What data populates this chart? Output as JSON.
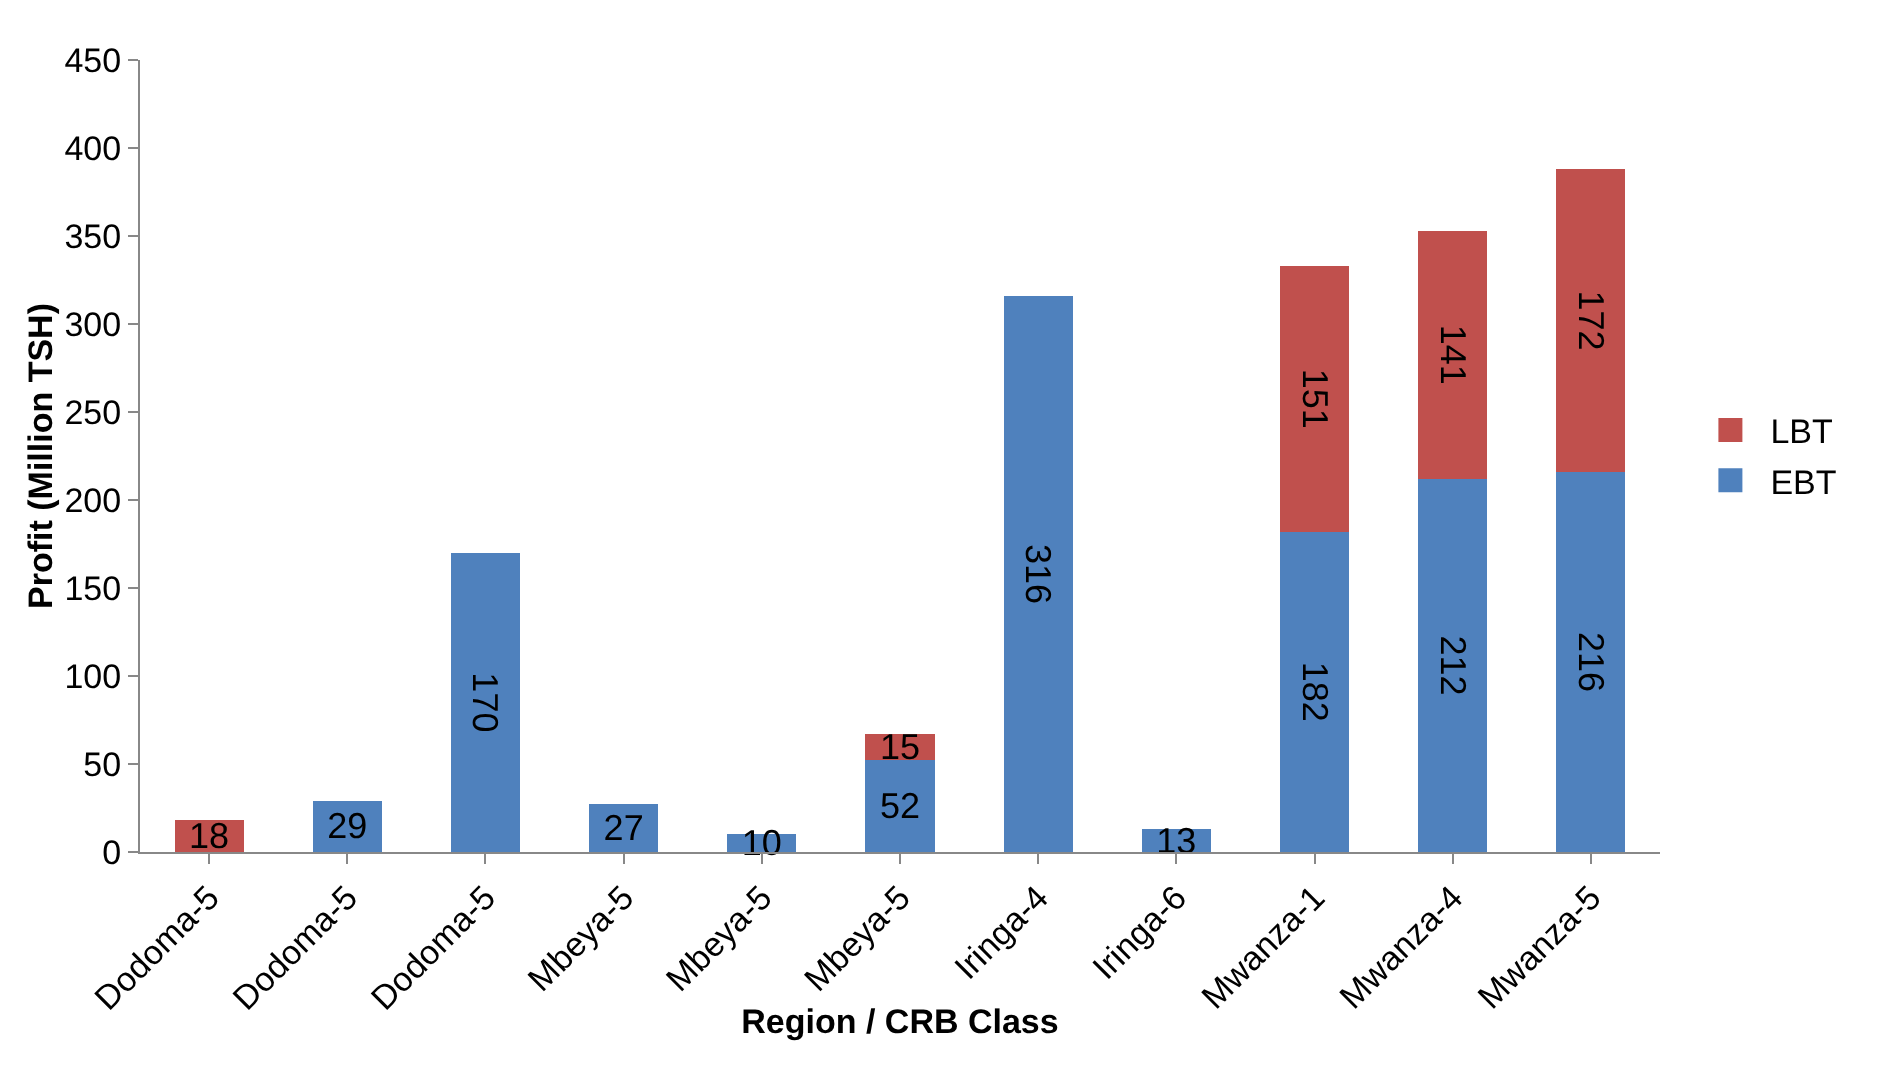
{
  "chart_data": {
    "type": "bar",
    "stacked": true,
    "xlabel": "Region / CRB Class",
    "ylabel": "Profit (Million TSH)",
    "categories": [
      "Dodoma-5",
      "Dodoma-5",
      "Dodoma-5",
      "Mbeya-5",
      "Mbeya-5",
      "Mbeya-5",
      "Iringa-4",
      "Iringa-6",
      "Mwanza-1",
      "Mwanza-4",
      "Mwanza-5"
    ],
    "series": [
      {
        "name": "EBT",
        "color": "#4f81bd",
        "values": [
          null,
          29,
          170,
          27,
          10,
          52,
          316,
          13,
          182,
          212,
          216
        ]
      },
      {
        "name": "LBT",
        "color": "#c0504d",
        "values": [
          18,
          null,
          null,
          null,
          null,
          15,
          null,
          null,
          151,
          141,
          172
        ]
      }
    ],
    "ylim": [
      0,
      450
    ],
    "yticks": [
      0,
      50,
      100,
      150,
      200,
      250,
      300,
      350,
      400,
      450
    ],
    "grid": false,
    "legend": "right",
    "data_labels": true
  }
}
